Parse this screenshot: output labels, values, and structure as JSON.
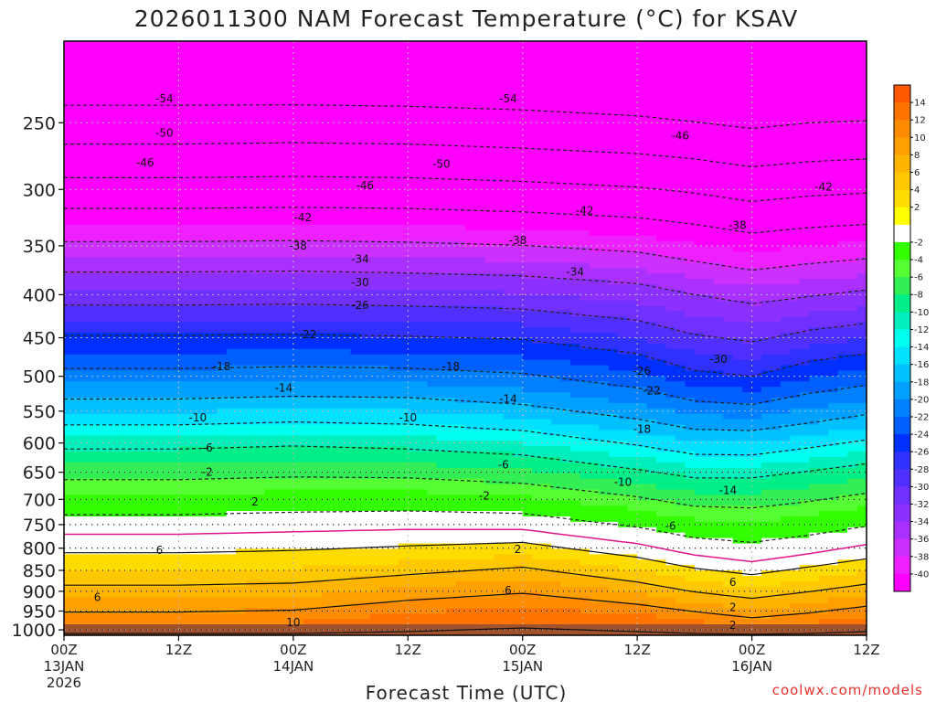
{
  "chart_data": {
    "type": "heatmap",
    "title": "2026011300 NAM Forecast Temperature (°C) for KSAV",
    "xlabel": "Forecast Time (UTC)",
    "credit": "coolwx.com/models",
    "y_axis": {
      "scale": "log-pressure",
      "inverted": true,
      "range": [
        200,
        1015
      ],
      "ticks": [
        "250",
        "300",
        "350",
        "400",
        "450",
        "500",
        "550",
        "600",
        "650",
        "700",
        "750",
        "800",
        "850",
        "900",
        "950",
        "1000"
      ],
      "dotted_gridlines_at": [
        650,
        700,
        750,
        800,
        850,
        900,
        950,
        1000
      ]
    },
    "x_axis": {
      "range_hours": [
        0,
        84
      ],
      "ticks": [
        {
          "hour": 0,
          "lines": [
            "00Z",
            "13JAN",
            "2026"
          ]
        },
        {
          "hour": 12,
          "lines": [
            "12Z"
          ]
        },
        {
          "hour": 24,
          "lines": [
            "00Z",
            "14JAN"
          ]
        },
        {
          "hour": 36,
          "lines": [
            "12Z"
          ]
        },
        {
          "hour": 48,
          "lines": [
            "00Z",
            "15JAN"
          ]
        },
        {
          "hour": 60,
          "lines": [
            "12Z"
          ]
        },
        {
          "hour": 72,
          "lines": [
            "00Z",
            "16JAN"
          ]
        },
        {
          "hour": 84,
          "lines": [
            "12Z"
          ]
        }
      ]
    },
    "colorbar": {
      "ticks": [
        "14",
        "12",
        "10",
        "8",
        "6",
        "4",
        "2",
        "-2",
        "-4",
        "-6",
        "-8",
        "-10",
        "-12",
        "-14",
        "-16",
        "-18",
        "-20",
        "-22",
        "-24",
        "-26",
        "-28",
        "-30",
        "-32",
        "-34",
        "-36",
        "-38",
        "-40"
      ],
      "colors": [
        "#ff5a00",
        "#ff7400",
        "#ff8c00",
        "#ffa000",
        "#ffb400",
        "#ffc800",
        "#ffdc00",
        "#ffff00",
        "#ffffff",
        "#33ff00",
        "#55ff33",
        "#33ee55",
        "#00ee88",
        "#00eebb",
        "#00ffee",
        "#00e0ff",
        "#00c0ff",
        "#00a0ff",
        "#0080ff",
        "#0060ff",
        "#0030ff",
        "#3030ff",
        "#5030ff",
        "#7030ff",
        "#8c30ff",
        "#aa30ff",
        "#cc30ff",
        "#ee20ff",
        "#ff00ff"
      ]
    },
    "isotherm_profiles": {
      "hours": [
        0,
        12,
        24,
        36,
        48,
        60,
        66,
        72,
        78,
        84
      ],
      "temp_C": [
        -54,
        -50,
        -46,
        -42,
        -38,
        -34,
        -30,
        -26,
        -22,
        -18,
        -14,
        -10,
        -6,
        -2,
        2,
        6,
        10,
        14
      ],
      "pressure_hPa": [
        [
          225,
          265,
          316,
          376,
          447,
          532,
          610,
          690,
          770,
          850,
          920,
          985,
          1010
        ],
        [
          225,
          265,
          316,
          376,
          447,
          532,
          610,
          690,
          770,
          850,
          920,
          985,
          1010
        ],
        [
          225,
          264,
          315,
          375,
          446,
          528,
          605,
          685,
          765,
          845,
          915,
          980,
          1010
        ],
        [
          226,
          265,
          316,
          377,
          448,
          530,
          610,
          685,
          760,
          830,
          890,
          955,
          1005
        ],
        [
          228,
          268,
          319,
          380,
          452,
          540,
          620,
          695,
          760,
          815,
          870,
          940,
          995
        ],
        [
          232,
          272,
          324,
          388,
          470,
          562,
          645,
          720,
          790,
          850,
          905,
          960,
          1005
        ],
        [
          236,
          276,
          330,
          400,
          492,
          578,
          660,
          740,
          815,
          875,
          928,
          975,
          1010
        ],
        [
          240,
          282,
          338,
          410,
          500,
          580,
          660,
          745,
          830,
          890,
          945,
          990,
          1012
        ],
        [
          236,
          278,
          333,
          402,
          480,
          568,
          648,
          732,
          812,
          872,
          930,
          980,
          1010
        ],
        [
          235,
          276,
          330,
          395,
          470,
          555,
          635,
          715,
          792,
          855,
          910,
          965,
          1005
        ]
      ],
      "pressure_temps_C": [
        -56,
        -50,
        -42,
        -34,
        -26,
        -18,
        -10,
        -4,
        0,
        4,
        8,
        12,
        14
      ]
    },
    "contour_labels": [
      {
        "text": "-54",
        "hour": 10.5,
        "p": 234
      },
      {
        "text": "-54",
        "hour": 46.5,
        "p": 234
      },
      {
        "text": "-50",
        "hour": 10.5,
        "p": 257
      },
      {
        "text": "-50",
        "hour": 39.5,
        "p": 280
      },
      {
        "text": "-46",
        "hour": 8.5,
        "p": 279
      },
      {
        "text": "-46",
        "hour": 31.5,
        "p": 297
      },
      {
        "text": "-46",
        "hour": 64.5,
        "p": 259
      },
      {
        "text": "-42",
        "hour": 25,
        "p": 324
      },
      {
        "text": "-42",
        "hour": 54.5,
        "p": 318
      },
      {
        "text": "-42",
        "hour": 79.5,
        "p": 298
      },
      {
        "text": "-38",
        "hour": 24.5,
        "p": 350
      },
      {
        "text": "-38",
        "hour": 47.5,
        "p": 345
      },
      {
        "text": "-38",
        "hour": 70.5,
        "p": 331
      },
      {
        "text": "-34",
        "hour": 31,
        "p": 363
      },
      {
        "text": "-34",
        "hour": 53.5,
        "p": 376
      },
      {
        "text": "-30",
        "hour": 31,
        "p": 387
      },
      {
        "text": "-30",
        "hour": 68.5,
        "p": 477
      },
      {
        "text": "-26",
        "hour": 31,
        "p": 412
      },
      {
        "text": "-26",
        "hour": 60.5,
        "p": 493
      },
      {
        "text": "-22",
        "hour": 25.5,
        "p": 446
      },
      {
        "text": "-22",
        "hour": 61.5,
        "p": 520
      },
      {
        "text": "-18",
        "hour": 16.5,
        "p": 487
      },
      {
        "text": "-18",
        "hour": 40.5,
        "p": 487
      },
      {
        "text": "-18",
        "hour": 60.5,
        "p": 578
      },
      {
        "text": "-14",
        "hour": 23,
        "p": 516
      },
      {
        "text": "-14",
        "hour": 46.5,
        "p": 532
      },
      {
        "text": "-14",
        "hour": 69.5,
        "p": 683
      },
      {
        "text": "-10",
        "hour": 14,
        "p": 560
      },
      {
        "text": "-10",
        "hour": 36,
        "p": 560
      },
      {
        "text": "-10",
        "hour": 58.5,
        "p": 668
      },
      {
        "text": "-6",
        "hour": 15,
        "p": 608
      },
      {
        "text": "-6",
        "hour": 46,
        "p": 637
      },
      {
        "text": "-6",
        "hour": 63.5,
        "p": 753
      },
      {
        "text": "-2",
        "hour": 15,
        "p": 650
      },
      {
        "text": "-2",
        "hour": 44,
        "p": 693
      },
      {
        "text": "2",
        "hour": 20,
        "p": 705
      },
      {
        "text": "2",
        "hour": 47.5,
        "p": 803
      },
      {
        "text": "2",
        "hour": 70,
        "p": 940
      },
      {
        "text": "2",
        "hour": 70,
        "p": 988
      },
      {
        "text": "6",
        "hour": 10,
        "p": 805
      },
      {
        "text": "6",
        "hour": 3.5,
        "p": 915
      },
      {
        "text": "6",
        "hour": 46.5,
        "p": 898
      },
      {
        "text": "6",
        "hour": 70,
        "p": 878
      },
      {
        "text": "10",
        "hour": 24,
        "p": 980
      }
    ]
  }
}
